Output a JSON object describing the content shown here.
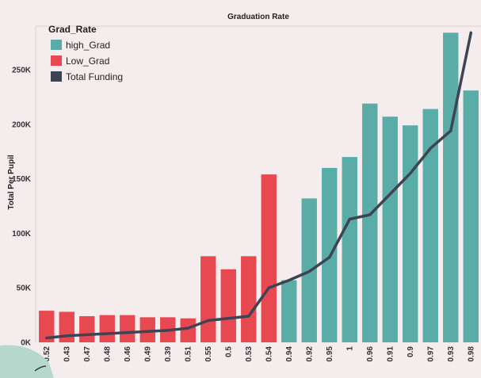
{
  "chart_data": {
    "type": "bar",
    "title": "Graduation Rate",
    "xlabel": "",
    "ylabel": "Total Per Pupil",
    "ylim": [
      0,
      290000
    ],
    "yticks": [
      0,
      50000,
      100000,
      150000,
      200000,
      250000
    ],
    "ytick_labels": [
      "0K",
      "50K",
      "100K",
      "150K",
      "200K",
      "250K"
    ],
    "categories": [
      "0.52",
      "0.43",
      "0.47",
      "0.48",
      "0.46",
      "0.49",
      "0.39",
      "0.51",
      "0.55",
      "0.5",
      "0.53",
      "0.54",
      "0.94",
      "0.92",
      "0.95",
      "1",
      "0.96",
      "0.91",
      "0.9",
      "0.97",
      "0.93",
      "0.98"
    ],
    "values": [
      29000,
      28000,
      24000,
      25000,
      25000,
      23000,
      23000,
      22000,
      79000,
      67000,
      79000,
      154000,
      57000,
      132000,
      160000,
      170000,
      219000,
      207000,
      199000,
      214000,
      284000,
      231000
    ],
    "groups": [
      "Low_Grad",
      "Low_Grad",
      "Low_Grad",
      "Low_Grad",
      "Low_Grad",
      "Low_Grad",
      "Low_Grad",
      "Low_Grad",
      "Low_Grad",
      "Low_Grad",
      "Low_Grad",
      "Low_Grad",
      "high_Grad",
      "high_Grad",
      "high_Grad",
      "high_Grad",
      "high_Grad",
      "high_Grad",
      "high_Grad",
      "high_Grad",
      "high_Grad",
      "high_Grad"
    ],
    "line": {
      "name": "Total Funding",
      "values": [
        4000,
        6000,
        7000,
        8000,
        9000,
        10000,
        11000,
        13000,
        20000,
        22000,
        24000,
        50000,
        57000,
        65000,
        78000,
        113000,
        117000,
        136000,
        155000,
        178000,
        194000,
        284000
      ]
    },
    "legend": {
      "title": "Grad_Rate",
      "position": "top-left",
      "entries": [
        {
          "name": "high_Grad",
          "color": "#5aada6"
        },
        {
          "name": "Low_Grad",
          "color": "#e8484f"
        },
        {
          "name": "Total Funding",
          "color": "#3d4454"
        }
      ]
    },
    "colors": {
      "high_Grad": "#5aada6",
      "Low_Grad": "#e8484f",
      "line": "#3d4454",
      "gridline": "#e2d6d6"
    },
    "grid": false
  }
}
